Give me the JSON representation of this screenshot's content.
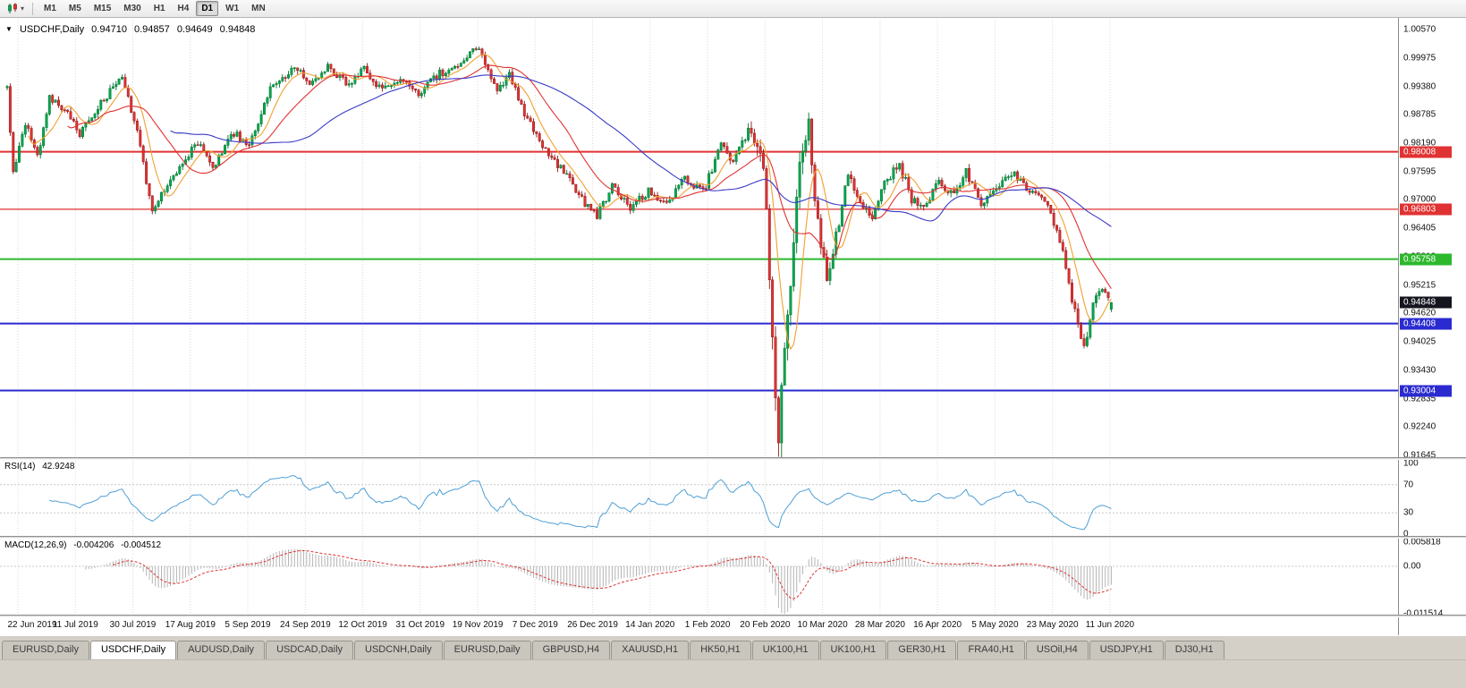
{
  "toolbar": {
    "chart_menu_icon": "candlestick-chart-icon",
    "dropdown_caret": "▾",
    "timeframes": [
      "M1",
      "M5",
      "M15",
      "M30",
      "H1",
      "H4",
      "D1",
      "W1",
      "MN"
    ],
    "selected_timeframe": "D1"
  },
  "chart_header": {
    "marker": "▼",
    "symbol": "USDCHF,Daily",
    "open": "0.94710",
    "high": "0.94857",
    "low": "0.94649",
    "close": "0.94848"
  },
  "price_axis": {
    "labels": [
      "1.00570",
      "0.99975",
      "0.99380",
      "0.98785",
      "0.98190",
      "0.97595",
      "0.97000",
      "0.96405",
      "0.95810",
      "0.95215",
      "0.94620",
      "0.94025",
      "0.93430",
      "0.92835",
      "0.92240",
      "0.91645"
    ]
  },
  "current_price_tag": {
    "label": "0.94848",
    "price": 0.94848,
    "bg_color": "#15151f"
  },
  "time_axis": [
    "22 Jun 2019",
    "11 Jul 2019",
    "30 Jul 2019",
    "17 Aug 2019",
    "5 Sep 2019",
    "24 Sep 2019",
    "12 Oct 2019",
    "31 Oct 2019",
    "19 Nov 2019",
    "7 Dec 2019",
    "26 Dec 2019",
    "14 Jan 2020",
    "1 Feb 2020",
    "20 Feb 2020",
    "10 Mar 2020",
    "28 Mar 2020",
    "16 Apr 2020",
    "5 May 2020",
    "23 May 2020",
    "11 Jun 2020"
  ],
  "rsi_panel": {
    "name": "RSI(14)",
    "value": "42.9248",
    "levels": [
      100,
      70,
      30,
      0
    ],
    "line_color": "#4f9fd6"
  },
  "macd_panel": {
    "name": "MACD(12,26,9)",
    "main_value": "-0.004206",
    "signal_value": "-0.004512",
    "axis_labels": [
      "0.005818",
      "0.00",
      "-0.011514"
    ],
    "axis_values": [
      0.005818,
      0,
      -0.011514
    ]
  },
  "tabs": {
    "active_index": 1,
    "items": [
      "EURUSD,Daily",
      "USDCHF,Daily",
      "AUDUSD,Daily",
      "USDCAD,Daily",
      "USDCNH,Daily",
      "EURUSD,Daily",
      "GBPUSD,H4",
      "XAUUSD,H1",
      "HK50,H1",
      "UK100,H1",
      "UK100,H1",
      "GER30,H1",
      "FRA40,H1",
      "USOil,H4",
      "USDJPY,H1",
      "DJ30,H1"
    ]
  },
  "chart_data": {
    "type": "candlestick",
    "title": "USDCHF Daily",
    "price_max": 1.0057,
    "price_min": 0.91645,
    "bar_count": 366,
    "ohlc_current": {
      "open": 0.9471,
      "high": 0.94857,
      "low": 0.94649,
      "close": 0.94848
    },
    "x_ticks": {
      "first_bar": 3.55,
      "bars_per_tick": 19
    },
    "price_path_anchors": [
      [
        0,
        0.9935
      ],
      [
        2,
        0.976
      ],
      [
        6,
        0.9865
      ],
      [
        10,
        0.979
      ],
      [
        14,
        0.9915
      ],
      [
        20,
        0.988
      ],
      [
        24,
        0.9835
      ],
      [
        31,
        0.9905
      ],
      [
        38,
        0.9958
      ],
      [
        42,
        0.987
      ],
      [
        48,
        0.9678
      ],
      [
        52,
        0.9722
      ],
      [
        57,
        0.977
      ],
      [
        63,
        0.9822
      ],
      [
        68,
        0.9768
      ],
      [
        75,
        0.984
      ],
      [
        80,
        0.9812
      ],
      [
        87,
        0.993
      ],
      [
        95,
        0.9983
      ],
      [
        100,
        0.9936
      ],
      [
        106,
        0.9985
      ],
      [
        112,
        0.9941
      ],
      [
        118,
        0.9974
      ],
      [
        124,
        0.9931
      ],
      [
        130,
        0.9955
      ],
      [
        136,
        0.9921
      ],
      [
        143,
        0.9965
      ],
      [
        150,
        0.999
      ],
      [
        155,
        1.0018
      ],
      [
        158,
        0.999
      ],
      [
        162,
        0.9931
      ],
      [
        166,
        0.9959
      ],
      [
        172,
        0.9866
      ],
      [
        178,
        0.9806
      ],
      [
        185,
        0.9751
      ],
      [
        191,
        0.9691
      ],
      [
        195,
        0.9666
      ],
      [
        200,
        0.9729
      ],
      [
        206,
        0.9681
      ],
      [
        212,
        0.9719
      ],
      [
        218,
        0.9692
      ],
      [
        224,
        0.9744
      ],
      [
        230,
        0.9716
      ],
      [
        236,
        0.9813
      ],
      [
        240,
        0.9781
      ],
      [
        245,
        0.9843
      ],
      [
        249,
        0.9815
      ],
      [
        251,
        0.97
      ],
      [
        253,
        0.942
      ],
      [
        255,
        0.918
      ],
      [
        257,
        0.9405
      ],
      [
        259,
        0.955
      ],
      [
        262,
        0.978
      ],
      [
        265,
        0.9868
      ],
      [
        268,
        0.9642
      ],
      [
        271,
        0.9532
      ],
      [
        274,
        0.962
      ],
      [
        278,
        0.9753
      ],
      [
        282,
        0.97
      ],
      [
        286,
        0.9656
      ],
      [
        290,
        0.9734
      ],
      [
        295,
        0.9774
      ],
      [
        299,
        0.9701
      ],
      [
        303,
        0.9681
      ],
      [
        308,
        0.9739
      ],
      [
        313,
        0.9714
      ],
      [
        317,
        0.9759
      ],
      [
        322,
        0.9696
      ],
      [
        327,
        0.9724
      ],
      [
        332,
        0.9758
      ],
      [
        337,
        0.9726
      ],
      [
        342,
        0.971
      ],
      [
        347,
        0.9641
      ],
      [
        350,
        0.956
      ],
      [
        354,
        0.9432
      ],
      [
        356,
        0.9386
      ],
      [
        359,
        0.9489
      ],
      [
        362,
        0.9514
      ],
      [
        365,
        0.94848
      ]
    ],
    "volatility_anchors": [
      [
        0,
        0.0016
      ],
      [
        244,
        0.0016
      ],
      [
        250,
        0.005
      ],
      [
        256,
        0.0062
      ],
      [
        262,
        0.0052
      ],
      [
        268,
        0.0036
      ],
      [
        276,
        0.002
      ],
      [
        344,
        0.0015
      ],
      [
        356,
        0.0022
      ],
      [
        365,
        0.0012
      ]
    ],
    "moving_averages": [
      {
        "period": 8,
        "color": "#f0a132"
      },
      {
        "period": 21,
        "color": "#e03232"
      },
      {
        "period": 55,
        "color": "#3939c8"
      }
    ],
    "horizontal_lines": [
      {
        "price": 0.98008,
        "label": "0.98008",
        "color": "#e03232",
        "width": 2
      },
      {
        "price": 0.96803,
        "label": "0.96803",
        "color": "#e03232",
        "width": 1.2
      },
      {
        "price": 0.95758,
        "label": "0.95758",
        "color": "#2db82d",
        "width": 2
      },
      {
        "price": 0.94408,
        "label": "0.94408",
        "color": "#2a2ad0",
        "width": 2
      },
      {
        "price": 0.93004,
        "label": "0.93004",
        "color": "#2a2ad0",
        "width": 2
      }
    ],
    "candle_colors": {
      "up": "#00a94e",
      "up_border": "#00702f",
      "down": "#e23232",
      "down_border": "#8f1616"
    },
    "indicators": {
      "rsi": {
        "period": 14
      },
      "macd": {
        "fast": 12,
        "slow": 26,
        "signal": 9
      }
    }
  }
}
